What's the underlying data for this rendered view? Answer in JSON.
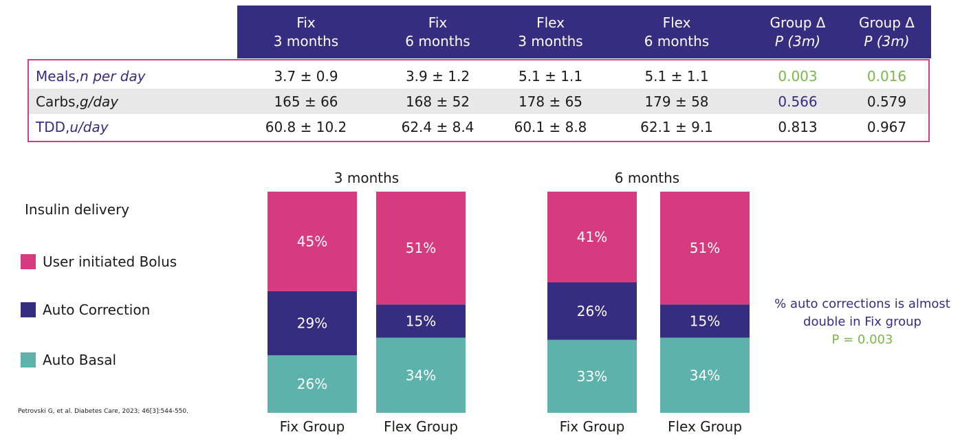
{
  "table": {
    "headers": [
      {
        "line1": "Fix",
        "line2": "3 months",
        "italic": false
      },
      {
        "line1": "Fix",
        "line2": "6 months",
        "italic": false
      },
      {
        "line1": "Flex",
        "line2": "3 months",
        "italic": false
      },
      {
        "line1": "Flex",
        "line2": "6 months",
        "italic": false
      },
      {
        "line1": "Group Δ",
        "line2": "P (3m)",
        "italic": true
      },
      {
        "line1": "Group Δ",
        "line2": "P (3m)",
        "italic": true
      }
    ],
    "rows": [
      {
        "label": "Meals, ",
        "label_unit": "n per day",
        "label_color": "purple",
        "cells": [
          "3.7 ± 0.9",
          "3.9 ± 1.2",
          "5.1 ± 1.1",
          "5.1 ± 1.1",
          "0.003",
          "0.016"
        ],
        "cell_colors": [
          "",
          "",
          "",
          "",
          "green",
          "green"
        ]
      },
      {
        "label": "Carbs, ",
        "label_unit": "g/day",
        "label_color": "",
        "cells": [
          "165 ± 66",
          "168 ± 52",
          "178 ± 65",
          "179 ± 58",
          "0.566",
          "0.579"
        ],
        "cell_colors": [
          "",
          "",
          "",
          "",
          "purple",
          ""
        ]
      },
      {
        "label": "TDD, ",
        "label_unit": "u/day",
        "label_color": "purple",
        "cells": [
          "60.8 ± 10.2",
          "62.4 ± 8.4",
          "60.1 ± 8.8",
          "62.1 ± 9.1",
          "0.813",
          "0.967"
        ],
        "cell_colors": [
          "",
          "",
          "",
          "",
          "",
          ""
        ]
      }
    ]
  },
  "legend": {
    "title": "Insulin delivery",
    "items": [
      {
        "label": "User initiated Bolus",
        "color": "#d63b7f"
      },
      {
        "label": "Auto Correction",
        "color": "#352d80"
      },
      {
        "label": "Auto Basal",
        "color": "#5db3ab"
      }
    ]
  },
  "chart_data": {
    "type": "bar",
    "stacked": true,
    "unit": "%",
    "panels": [
      {
        "title": "3 months",
        "categories": [
          "Fix Group",
          "Flex Group"
        ],
        "series": [
          {
            "name": "Auto Basal",
            "values": [
              26,
              34
            ],
            "color": "#5db3ab"
          },
          {
            "name": "Auto Correction",
            "values": [
              29,
              15
            ],
            "color": "#352d80"
          },
          {
            "name": "User initiated Bolus",
            "values": [
              45,
              51
            ],
            "color": "#d63b7f"
          }
        ]
      },
      {
        "title": "6 months",
        "categories": [
          "Fix Group",
          "Flex Group"
        ],
        "series": [
          {
            "name": "Auto Basal",
            "values": [
              33,
              34
            ],
            "color": "#5db3ab"
          },
          {
            "name": "Auto Correction",
            "values": [
              26,
              15
            ],
            "color": "#352d80"
          },
          {
            "name": "User initiated Bolus",
            "values": [
              41,
              51
            ],
            "color": "#d63b7f"
          }
        ]
      }
    ]
  },
  "note": {
    "line1": "% auto corrections is almost",
    "line2": "double in Fix group",
    "line3": "P = 0.003"
  },
  "citation": "Petrovski G, et al. Diabetes Care, 2023; 46[3]:544-550."
}
